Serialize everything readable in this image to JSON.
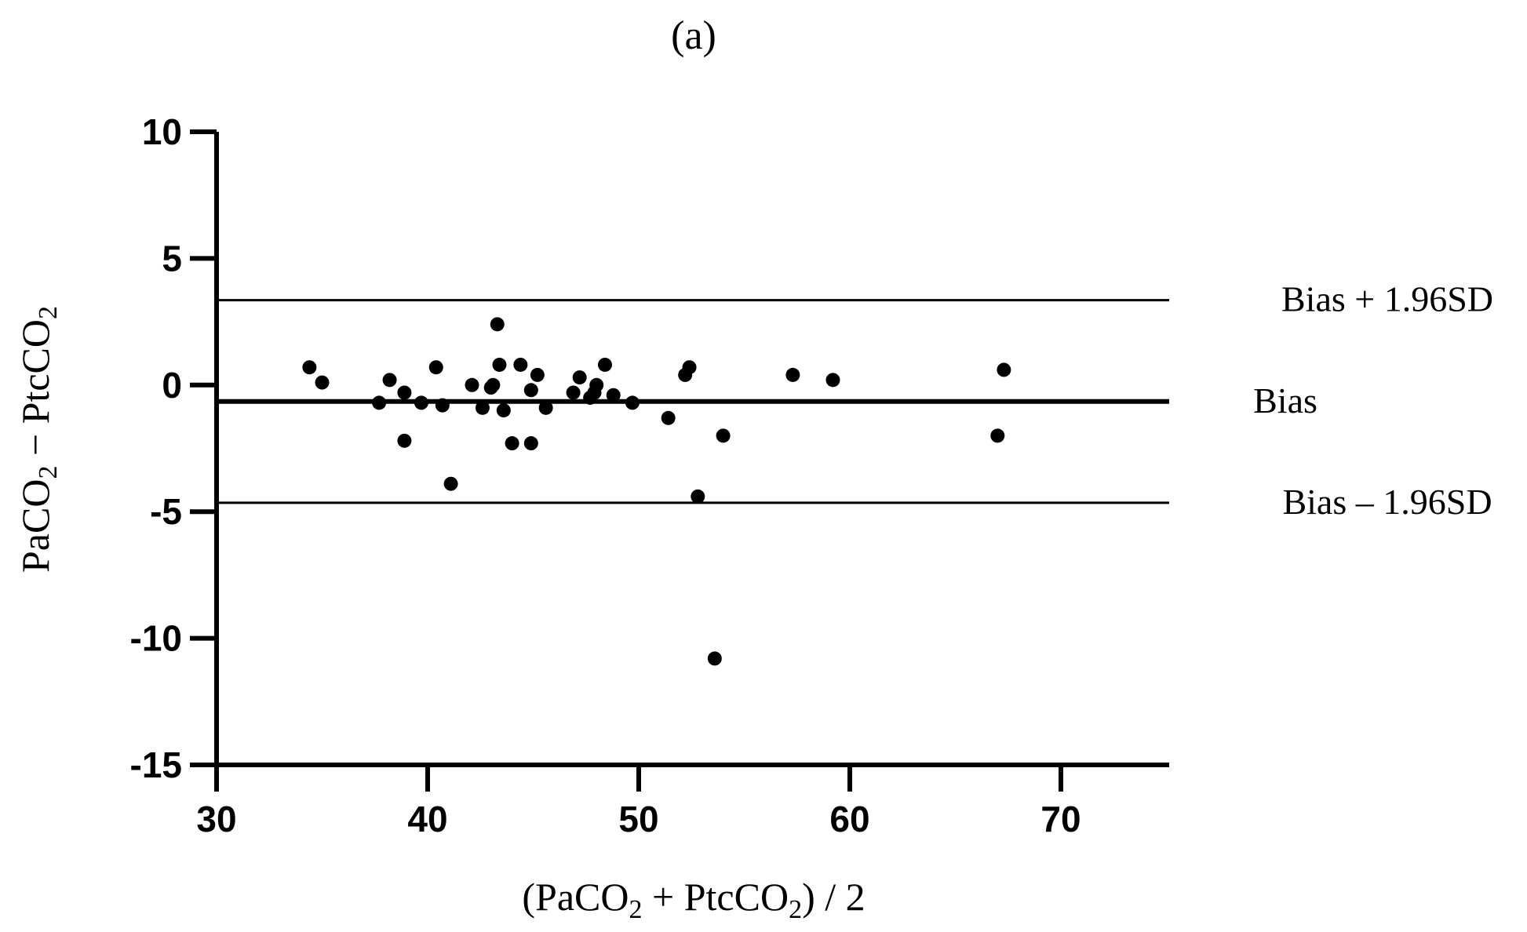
{
  "chart_data": {
    "type": "scatter",
    "title": "(a)",
    "xlabel": {
      "base1": "(PaCO",
      "sub1": "2",
      "mid": " + PtcCO",
      "sub2": "2",
      "end": ") / 2"
    },
    "ylabel": {
      "base1": "PaCO",
      "sub1": "2",
      "mid": " − PtcCO",
      "sub2": "2"
    },
    "xlim": [
      30,
      75
    ],
    "ylim": [
      -15,
      10
    ],
    "xticks": [
      30,
      40,
      50,
      60,
      70
    ],
    "yticks": [
      10,
      5,
      0,
      -5,
      -10,
      -15
    ],
    "xtick_labels": [
      "30",
      "40",
      "50",
      "60",
      "70"
    ],
    "ytick_labels": [
      "10",
      "5",
      "0",
      "-5",
      "-10",
      "-15"
    ],
    "grid": false,
    "reference_lines": [
      {
        "label": "Bias + 1.96SD",
        "y": 3.35
      },
      {
        "label": "Bias",
        "y": -0.65
      },
      {
        "label": "Bias – 1.96SD",
        "y": -4.65
      }
    ],
    "points": [
      {
        "x": 34.4,
        "y": 0.7
      },
      {
        "x": 35.0,
        "y": 0.1
      },
      {
        "x": 37.7,
        "y": -0.7
      },
      {
        "x": 38.2,
        "y": 0.2
      },
      {
        "x": 38.9,
        "y": -0.3
      },
      {
        "x": 38.9,
        "y": -2.2
      },
      {
        "x": 39.7,
        "y": -0.7
      },
      {
        "x": 40.4,
        "y": 0.7
      },
      {
        "x": 40.7,
        "y": -0.8
      },
      {
        "x": 41.1,
        "y": -3.9
      },
      {
        "x": 42.1,
        "y": 0.0
      },
      {
        "x": 42.6,
        "y": -0.9
      },
      {
        "x": 43.0,
        "y": -0.1
      },
      {
        "x": 43.1,
        "y": 0.0
      },
      {
        "x": 43.3,
        "y": 2.4
      },
      {
        "x": 43.4,
        "y": 0.8
      },
      {
        "x": 43.6,
        "y": -1.0
      },
      {
        "x": 44.0,
        "y": -2.3
      },
      {
        "x": 44.4,
        "y": 0.8
      },
      {
        "x": 44.9,
        "y": -0.2
      },
      {
        "x": 44.9,
        "y": -2.3
      },
      {
        "x": 45.2,
        "y": 0.4
      },
      {
        "x": 45.6,
        "y": -0.9
      },
      {
        "x": 46.9,
        "y": -0.3
      },
      {
        "x": 47.2,
        "y": 0.3
      },
      {
        "x": 47.7,
        "y": -0.5
      },
      {
        "x": 47.9,
        "y": -0.3
      },
      {
        "x": 48.0,
        "y": 0.0
      },
      {
        "x": 48.4,
        "y": 0.8
      },
      {
        "x": 48.8,
        "y": -0.4
      },
      {
        "x": 49.7,
        "y": -0.7
      },
      {
        "x": 51.4,
        "y": -1.3
      },
      {
        "x": 52.2,
        "y": 0.4
      },
      {
        "x": 52.4,
        "y": 0.7
      },
      {
        "x": 52.8,
        "y": -4.4
      },
      {
        "x": 53.6,
        "y": -10.8
      },
      {
        "x": 54.0,
        "y": -2.0
      },
      {
        "x": 57.3,
        "y": 0.4
      },
      {
        "x": 59.2,
        "y": 0.2
      },
      {
        "x": 67.0,
        "y": -2.0
      },
      {
        "x": 67.3,
        "y": 0.6
      }
    ]
  }
}
